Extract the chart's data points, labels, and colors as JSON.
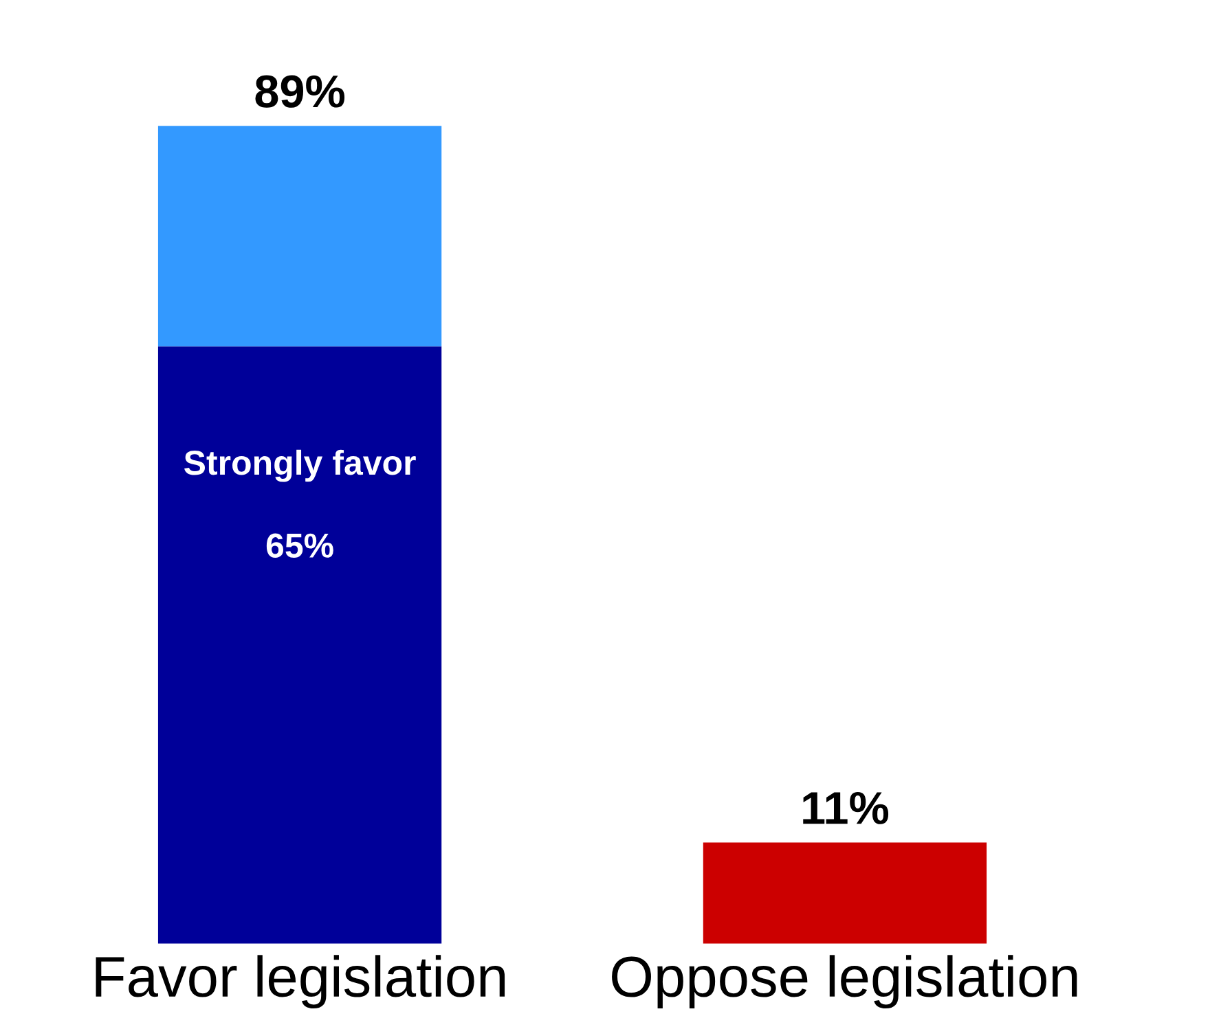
{
  "chart_data": {
    "type": "bar",
    "stacked": true,
    "categories": [
      "Favor legislation",
      "Oppose legislation"
    ],
    "series": [
      {
        "name": "Strongly favor",
        "color": "#000099",
        "values": [
          65,
          null
        ],
        "value_labels": [
          "65%",
          null
        ]
      },
      {
        "color": "#3399ff",
        "values": [
          24,
          null
        ]
      },
      {
        "color": "#cc0000",
        "values": [
          null,
          11
        ]
      }
    ],
    "totals": [
      "89%",
      "11%"
    ],
    "legend": false,
    "grid": false
  }
}
